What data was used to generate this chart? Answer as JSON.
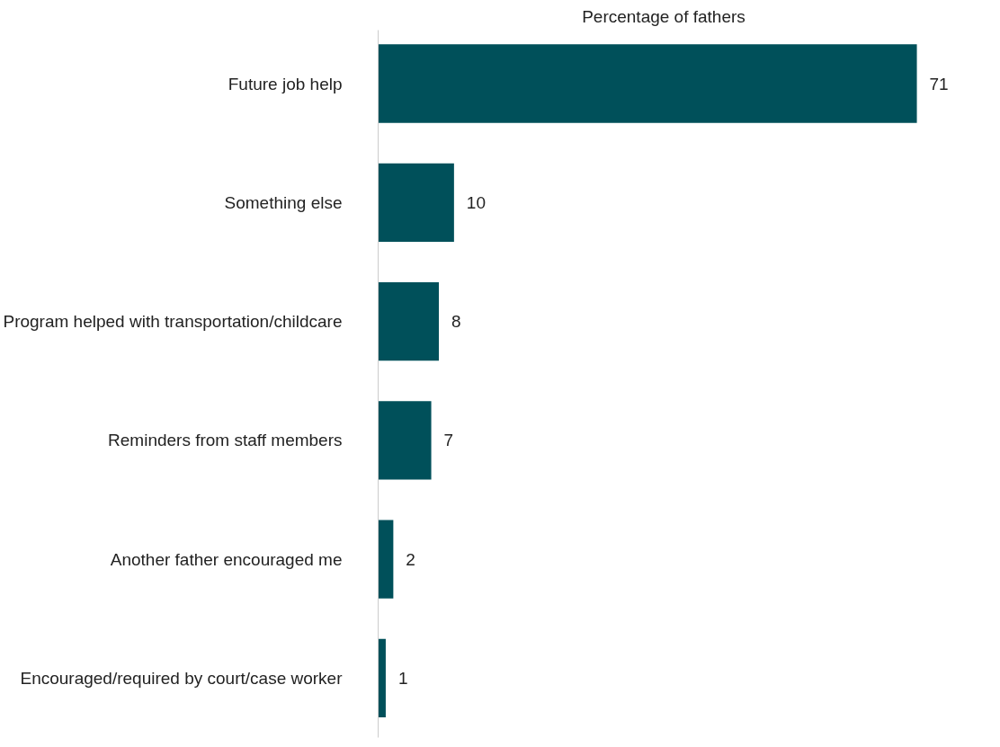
{
  "chart_data": {
    "type": "bar",
    "orientation": "horizontal",
    "xlabel": "Percentage of fathers",
    "categories": [
      "Future job help",
      "Something else",
      "Program helped with transportation/childcare",
      "Reminders from staff members",
      "Another father encouraged me",
      "Encouraged/required by court/case worker"
    ],
    "values": [
      71,
      10,
      8,
      7,
      2,
      1
    ],
    "color": "#00505a",
    "data_labels": true,
    "grid": false
  }
}
